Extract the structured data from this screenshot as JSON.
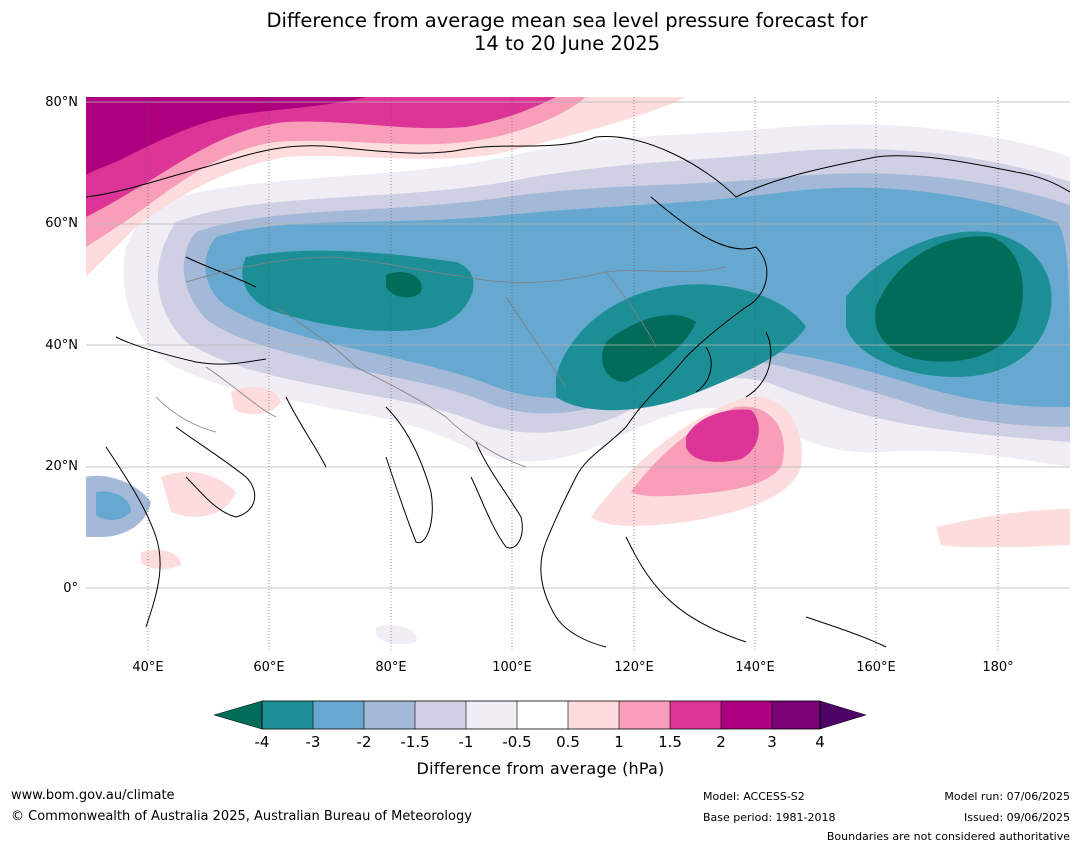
{
  "title": {
    "line1": "Difference from average mean sea level pressure forecast for",
    "line2": "14 to 20 June 2025"
  },
  "map": {
    "lat_labels": [
      "80°N",
      "60°N",
      "40°N",
      "20°N",
      "0°"
    ],
    "lon_labels": [
      "40°E",
      "60°E",
      "80°E",
      "100°E",
      "120°E",
      "140°E",
      "160°E",
      "180°"
    ]
  },
  "colorbar": {
    "label": "Difference from average (hPa)",
    "ticks": [
      "-4",
      "-3",
      "-2",
      "-1.5",
      "-1",
      "-0.5",
      "0.5",
      "1",
      "1.5",
      "2",
      "3",
      "4"
    ],
    "colors": {
      "below_min": "#016c59",
      "bins": [
        "#1b8f95",
        "#66a8cf",
        "#a4b9d7",
        "#cfd0e3",
        "#f1edf4",
        "#ffffff",
        "#fcdcdc",
        "#f89eb9",
        "#dd3597",
        "#ad007e",
        "#7a0177"
      ],
      "above_max": "#4d0466"
    }
  },
  "footer": {
    "website": "www.bom.gov.au/climate",
    "copyright": "© Commonwealth of Australia 2025, Australian Bureau of Meteorology",
    "model": "Model: ACCESS-S2",
    "base_period": "Base period: 1981-2018",
    "model_run": "Model run: 07/06/2025",
    "issued": "Issued: 09/06/2025",
    "disclaimer": "Boundaries are not considered authoritative"
  }
}
